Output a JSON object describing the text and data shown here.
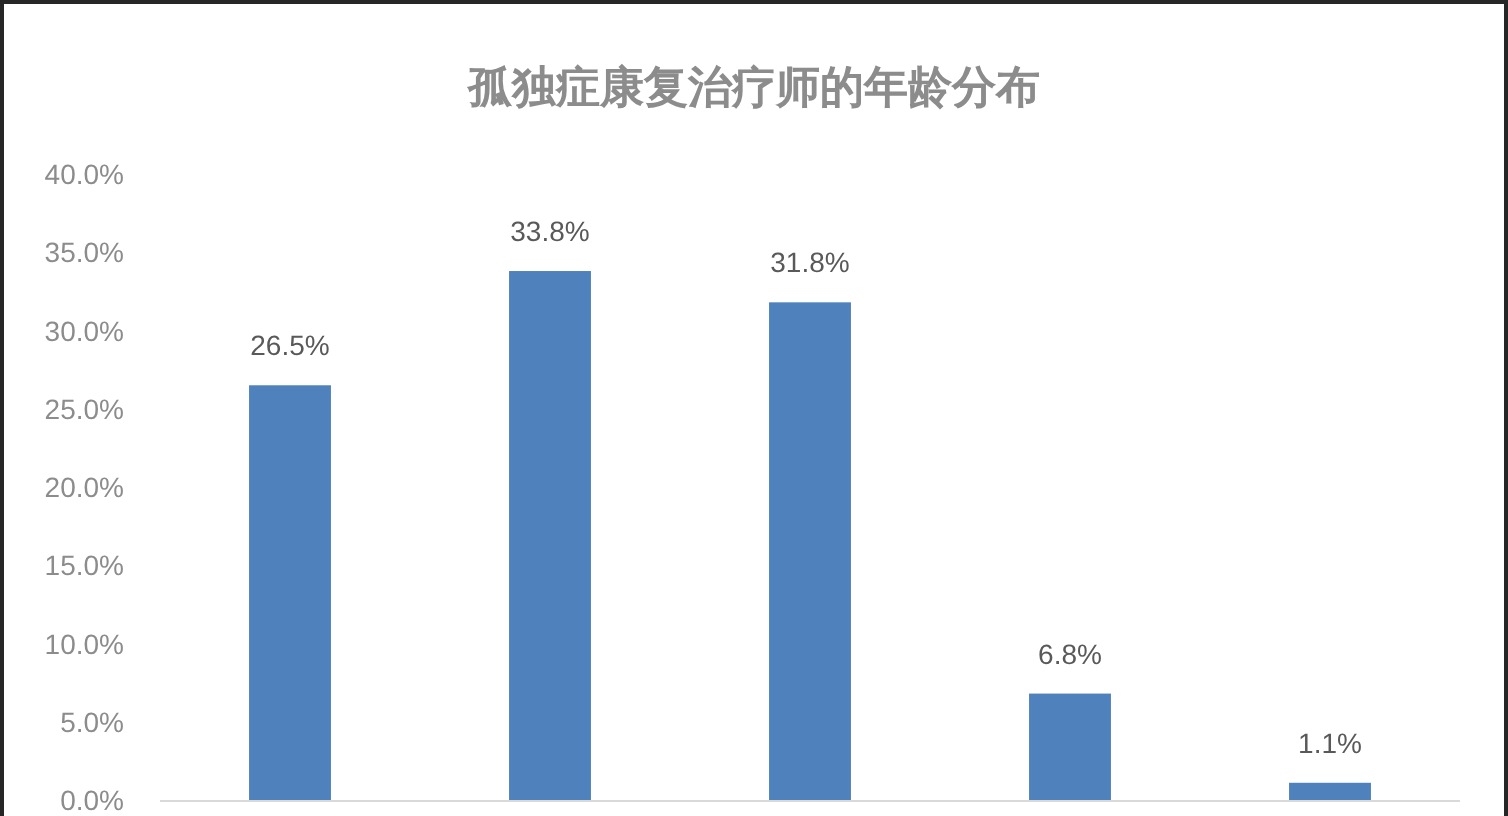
{
  "chart_data": {
    "type": "bar",
    "title": "孤独症康复治疗师的年龄分布",
    "categories": [
      null,
      null,
      null,
      null,
      null
    ],
    "values": [
      26.5,
      33.8,
      31.8,
      6.8,
      1.1
    ],
    "value_labels": [
      "26.5%",
      "33.8%",
      "31.8%",
      "6.8%",
      "1.1%"
    ],
    "color": "#4f81bd",
    "ylim": [
      0,
      40
    ],
    "yticks": [
      {
        "value": 0,
        "label": "0.0%"
      },
      {
        "value": 5,
        "label": "5.0%"
      },
      {
        "value": 10,
        "label": "10.0%"
      },
      {
        "value": 15,
        "label": "15.0%"
      },
      {
        "value": 20,
        "label": "20.0%"
      },
      {
        "value": 25,
        "label": "25.0%"
      },
      {
        "value": 30,
        "label": "30.0%"
      },
      {
        "value": 35,
        "label": "35.0%"
      },
      {
        "value": 40,
        "label": "40.0%"
      }
    ],
    "tick_labels": "y"
  }
}
